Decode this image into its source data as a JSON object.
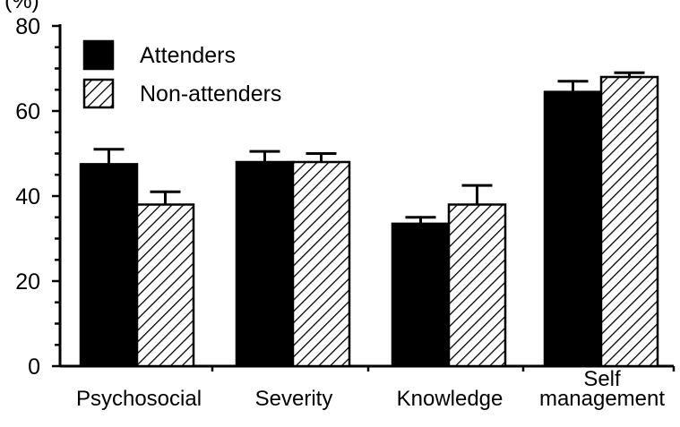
{
  "chart_data": {
    "type": "bar",
    "title": "",
    "ylabel": "(%)",
    "xlabel": "",
    "ylim": [
      0,
      80
    ],
    "yticks": [
      0,
      20,
      40,
      60,
      80
    ],
    "grid": false,
    "legend_position": "top-left",
    "categories": [
      "Psychosocial",
      "Severity",
      "Knowledge",
      "Self management"
    ],
    "category_lines": [
      [
        "Psychosocial"
      ],
      [
        "Severity"
      ],
      [
        "Knowledge"
      ],
      [
        "Self",
        "management"
      ]
    ],
    "series": [
      {
        "name": "Attenders",
        "fill": "solid",
        "color": "#000000",
        "values": [
          47.5,
          48,
          33.5,
          64.5
        ],
        "errors": [
          3.5,
          2.5,
          1.5,
          2.5
        ]
      },
      {
        "name": "Non-attenders",
        "fill": "hatched",
        "color": "#000000",
        "values": [
          38,
          48,
          38,
          68
        ],
        "errors": [
          3,
          2,
          4.5,
          1
        ]
      }
    ]
  }
}
